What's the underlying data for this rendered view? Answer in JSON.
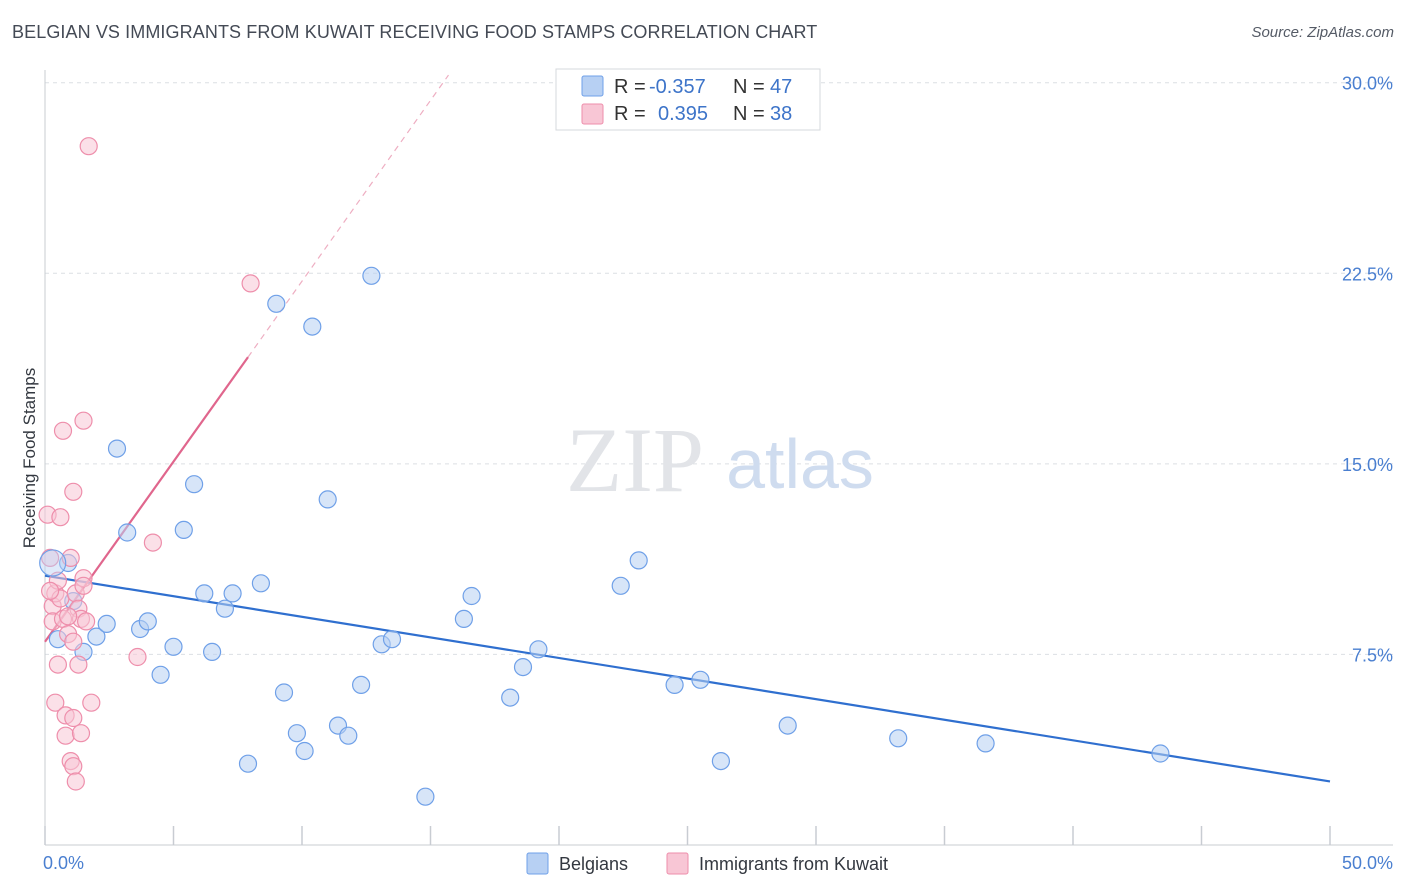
{
  "title": "BELGIAN VS IMMIGRANTS FROM KUWAIT RECEIVING FOOD STAMPS CORRELATION CHART",
  "source": "Source: ZipAtlas.com",
  "watermark": {
    "zip": "ZIP",
    "atlas": "atlas"
  },
  "legend": {
    "r_label": "R =",
    "n_label": "N =",
    "rows": [
      {
        "r": "-0.357",
        "n": "47"
      },
      {
        "r": "0.395",
        "n": "38"
      }
    ]
  },
  "chart_data": {
    "type": "scatter",
    "title": "BELGIAN VS IMMIGRANTS FROM KUWAIT RECEIVING FOOD STAMPS CORRELATION CHART",
    "xlabel": "",
    "ylabel": "Receiving Food Stamps",
    "xlim": [
      0,
      50
    ],
    "ylim": [
      0,
      30.5
    ],
    "x_tick_labels": {
      "left": "0.0%",
      "right": "50.0%"
    },
    "x_minor_ticks": [
      0,
      5,
      10,
      15,
      20,
      25,
      30,
      35,
      40,
      45,
      50
    ],
    "y_ticks": [
      {
        "value": 7.5,
        "label": "7.5%"
      },
      {
        "value": 15.0,
        "label": "15.0%"
      },
      {
        "value": 22.5,
        "label": "22.5%"
      },
      {
        "value": 30.0,
        "label": "30.0%"
      }
    ],
    "grid": true,
    "series": [
      {
        "name": "Belgians",
        "color": "#6fa0e8",
        "fill": "#b7d0f3",
        "line_color": "#2f6fcf",
        "trend": {
          "x0": 0,
          "y0": 10.6,
          "x1": 50,
          "y1": 2.5,
          "dashed_from": null
        },
        "points": [
          [
            0.5,
            8.1
          ],
          [
            0.9,
            11.1
          ],
          [
            1.1,
            9.6
          ],
          [
            1.5,
            7.6
          ],
          [
            2.0,
            8.2
          ],
          [
            2.4,
            8.7
          ],
          [
            2.8,
            15.6
          ],
          [
            3.2,
            12.3
          ],
          [
            3.7,
            8.5
          ],
          [
            4.0,
            8.8
          ],
          [
            4.5,
            6.7
          ],
          [
            5.0,
            7.8
          ],
          [
            5.4,
            12.4
          ],
          [
            5.8,
            14.2
          ],
          [
            6.2,
            9.9
          ],
          [
            6.5,
            7.6
          ],
          [
            7.0,
            9.3
          ],
          [
            7.3,
            9.9
          ],
          [
            7.9,
            3.2
          ],
          [
            8.4,
            10.3
          ],
          [
            9.0,
            21.3
          ],
          [
            9.3,
            6.0
          ],
          [
            9.8,
            4.4
          ],
          [
            10.1,
            3.7
          ],
          [
            10.4,
            20.4
          ],
          [
            11.0,
            13.6
          ],
          [
            11.4,
            4.7
          ],
          [
            11.8,
            4.3
          ],
          [
            12.3,
            6.3
          ],
          [
            12.7,
            22.4
          ],
          [
            13.1,
            7.9
          ],
          [
            13.5,
            8.1
          ],
          [
            14.8,
            1.9
          ],
          [
            16.3,
            8.9
          ],
          [
            16.6,
            9.8
          ],
          [
            18.1,
            5.8
          ],
          [
            18.6,
            7.0
          ],
          [
            19.2,
            7.7
          ],
          [
            22.4,
            10.2
          ],
          [
            23.1,
            11.2
          ],
          [
            24.5,
            6.3
          ],
          [
            25.5,
            6.5
          ],
          [
            26.3,
            3.3
          ],
          [
            28.9,
            4.7
          ],
          [
            33.2,
            4.2
          ],
          [
            36.6,
            4.0
          ],
          [
            43.4,
            3.6
          ]
        ]
      },
      {
        "name": "Immigrants from Kuwait",
        "color": "#ee8eab",
        "fill": "#f8c6d5",
        "line_color": "#e0668d",
        "trend": {
          "x0": 0,
          "y0": 8.0,
          "x1": 7.9,
          "y1": 19.2,
          "dashed_to": {
            "x": 15.7,
            "y": 30.3
          }
        },
        "points": [
          [
            0.1,
            13.0
          ],
          [
            0.2,
            11.3
          ],
          [
            0.3,
            9.4
          ],
          [
            0.3,
            8.8
          ],
          [
            0.4,
            5.6
          ],
          [
            0.5,
            7.1
          ],
          [
            0.4,
            9.9
          ],
          [
            0.5,
            10.4
          ],
          [
            0.6,
            12.9
          ],
          [
            0.6,
            9.7
          ],
          [
            0.7,
            16.3
          ],
          [
            0.7,
            8.9
          ],
          [
            0.8,
            5.1
          ],
          [
            0.8,
            4.3
          ],
          [
            0.9,
            8.3
          ],
          [
            1.0,
            3.3
          ],
          [
            1.0,
            11.3
          ],
          [
            1.1,
            13.9
          ],
          [
            1.1,
            8.0
          ],
          [
            1.1,
            3.1
          ],
          [
            1.1,
            5.0
          ],
          [
            1.2,
            2.5
          ],
          [
            1.2,
            9.9
          ],
          [
            1.3,
            9.3
          ],
          [
            1.3,
            7.1
          ],
          [
            1.4,
            8.9
          ],
          [
            1.4,
            4.4
          ],
          [
            1.5,
            10.5
          ],
          [
            1.5,
            10.2
          ],
          [
            1.5,
            16.7
          ],
          [
            1.6,
            8.8
          ],
          [
            1.7,
            27.5
          ],
          [
            1.8,
            5.6
          ],
          [
            3.6,
            7.4
          ],
          [
            4.2,
            11.9
          ],
          [
            8.0,
            22.1
          ],
          [
            0.2,
            10.0
          ],
          [
            0.9,
            9.0
          ]
        ]
      }
    ]
  }
}
